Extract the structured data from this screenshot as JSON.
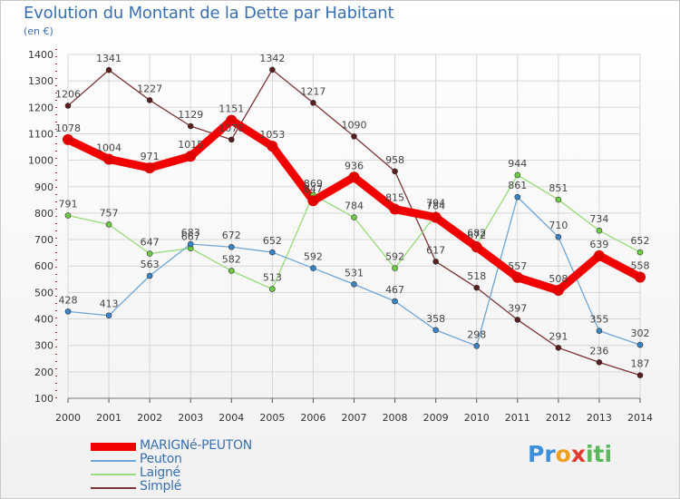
{
  "title": "Evolution du Montant de la Dette par Habitant",
  "unit": "(en €)",
  "logo": {
    "parts": [
      {
        "text": "Pr",
        "color": "#3b8ed8"
      },
      {
        "text": "o",
        "color": "#f0a020"
      },
      {
        "text": "x",
        "color": "#e23a2e"
      },
      {
        "text": "iti",
        "color": "#5cb85c"
      }
    ]
  },
  "chart_data": {
    "type": "line",
    "title": "Evolution du Montant de la Dette par Habitant",
    "ylabel": "(en €)",
    "xlabel": "",
    "x": [
      "2000",
      "2001",
      "2002",
      "2003",
      "2004",
      "2005",
      "2006",
      "2007",
      "2008",
      "2009",
      "2010",
      "2011",
      "2012",
      "2013",
      "2014"
    ],
    "yticks": [
      100,
      200,
      300,
      400,
      500,
      600,
      700,
      800,
      900,
      1000,
      1100,
      1200,
      1300,
      1400
    ],
    "ylim": [
      100,
      1400
    ],
    "grid": true,
    "legend_position": "bottom-left",
    "series": [
      {
        "name": "MARIGNé-PEUTON",
        "color": "#f20000",
        "line_width": 9,
        "marker_color": "#e00000",
        "values": [
          1078,
          1004,
          971,
          1015,
          1151,
          1053,
          847,
          936,
          815,
          784,
          672,
          557,
          508,
          639,
          558
        ]
      },
      {
        "name": "Peuton",
        "color": "#6ea6d6",
        "line_width": 1.3,
        "marker_color": "#3a84c8",
        "values": [
          428,
          413,
          563,
          683,
          672,
          652,
          592,
          531,
          467,
          358,
          298,
          861,
          710,
          355,
          302
        ]
      },
      {
        "name": "Laigné",
        "color": "#96dc78",
        "line_width": 1.3,
        "marker_color": "#6ccc44",
        "values": [
          791,
          757,
          647,
          667,
          582,
          513,
          869,
          784,
          592,
          794,
          682,
          944,
          851,
          734,
          652
        ]
      },
      {
        "name": "Simplé",
        "color": "#7a3535",
        "line_width": 1.3,
        "marker_color": "#5a1e1e",
        "values": [
          1206,
          1341,
          1227,
          1129,
          1078,
          1342,
          1217,
          1090,
          958,
          617,
          518,
          397,
          291,
          236,
          187
        ]
      }
    ]
  }
}
